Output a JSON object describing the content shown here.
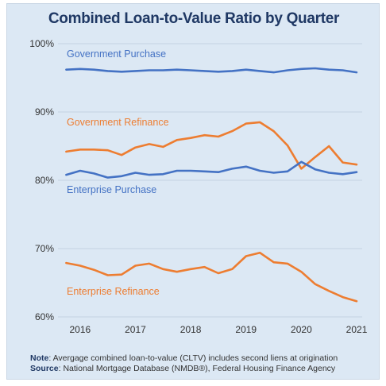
{
  "chart_data": {
    "type": "line",
    "title": "Combined Loan-to-Value Ratio by Quarter",
    "xlabel": "",
    "ylabel": "",
    "ylim": [
      60,
      100
    ],
    "yticks": [
      "60%",
      "70%",
      "80%",
      "90%",
      "100%"
    ],
    "xticks": [
      "2016",
      "2017",
      "2018",
      "2019",
      "2020",
      "2021"
    ],
    "xlim": [
      2015.6,
      2021.1
    ],
    "grid": "horizontal",
    "legend": "inline labels",
    "x": [
      2015.75,
      2016.0,
      2016.25,
      2016.5,
      2016.75,
      2017.0,
      2017.25,
      2017.5,
      2017.75,
      2018.0,
      2018.25,
      2018.5,
      2018.75,
      2019.0,
      2019.25,
      2019.5,
      2019.75,
      2020.0,
      2020.25,
      2020.5,
      2020.75,
      2021.0
    ],
    "series": [
      {
        "name": "Government Purchase",
        "color": "#4472c4",
        "values": [
          96.2,
          96.3,
          96.2,
          96.0,
          95.9,
          96.0,
          96.1,
          96.1,
          96.2,
          96.1,
          96.0,
          95.9,
          96.0,
          96.2,
          96.0,
          95.8,
          96.1,
          96.3,
          96.4,
          96.2,
          96.1,
          95.8
        ]
      },
      {
        "name": "Government Refinance",
        "color": "#ed7d31",
        "values": [
          84.2,
          84.5,
          84.5,
          84.4,
          83.7,
          84.8,
          85.3,
          84.9,
          85.9,
          86.2,
          86.6,
          86.4,
          87.2,
          88.3,
          88.5,
          87.2,
          85.1,
          81.7,
          83.4,
          85.0,
          82.6,
          82.3
        ]
      },
      {
        "name": "Enterprise Purchase",
        "color": "#4472c4",
        "values": [
          80.8,
          81.4,
          81.0,
          80.4,
          80.6,
          81.1,
          80.8,
          80.9,
          81.4,
          81.4,
          81.3,
          81.2,
          81.7,
          82.0,
          81.4,
          81.1,
          81.3,
          82.7,
          81.6,
          81.1,
          80.9,
          81.2
        ]
      },
      {
        "name": "Enterprise Refinance",
        "color": "#ed7d31",
        "values": [
          67.9,
          67.5,
          66.9,
          66.1,
          66.2,
          67.5,
          67.8,
          67.0,
          66.6,
          67.0,
          67.3,
          66.4,
          67.0,
          68.9,
          69.4,
          68.0,
          67.8,
          66.6,
          64.8,
          63.8,
          62.9,
          62.3
        ]
      }
    ]
  },
  "notes": {
    "note_label": "Note",
    "note_text": ": Avergage combined loan-to-value (CLTV) includes second liens at origination",
    "source_label": "Source",
    "source_text": ": National Mortgage Database (NMDB®), Federal Housing Finance Agency"
  }
}
